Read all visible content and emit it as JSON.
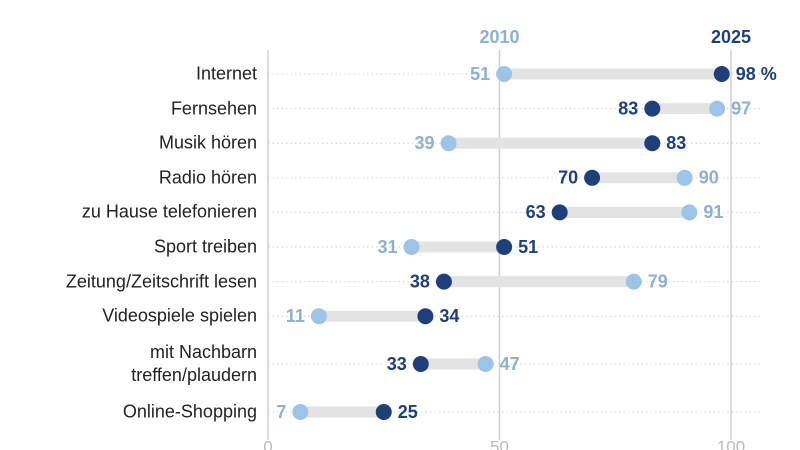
{
  "chart_data": {
    "type": "dumbbell",
    "categories": [
      "Internet",
      "Fernsehen",
      "Musik hören",
      "Radio hören",
      "zu Hause telefonieren",
      "Sport treiben",
      "Zeitung/Zeitschrift lesen",
      "Videospiele spielen",
      "mit Nachbarn\ntreffen/plaudern",
      "Online-Shopping"
    ],
    "series": [
      {
        "name": "2010",
        "color": "#9dc3e6",
        "values": [
          51,
          97,
          39,
          90,
          91,
          31,
          79,
          11,
          47,
          7
        ]
      },
      {
        "name": "2025",
        "color": "#1f3f7a",
        "values": [
          98,
          83,
          83,
          70,
          63,
          51,
          38,
          34,
          33,
          25
        ],
        "value_labels": [
          "98 %",
          "83",
          "83",
          "70",
          "63",
          "51",
          "38",
          "34",
          "33",
          "25"
        ]
      }
    ],
    "xlim": [
      0,
      100
    ],
    "xticks": [
      0,
      50,
      100
    ],
    "grid": true
  }
}
